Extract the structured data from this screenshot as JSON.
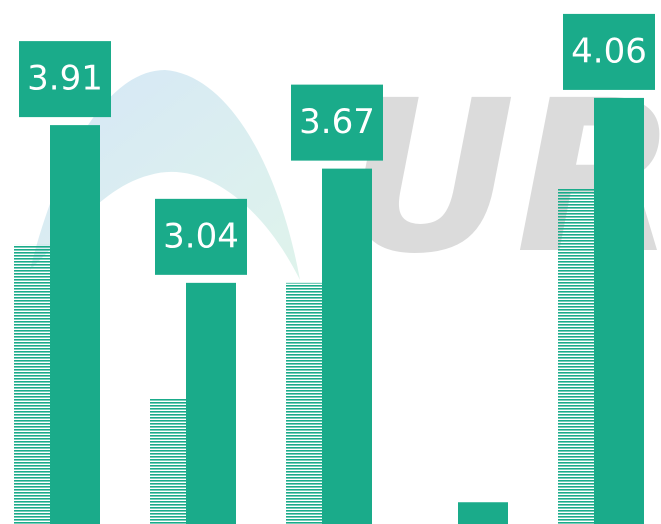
{
  "chart_data": {
    "type": "bar",
    "watermark": "URC",
    "categories": [
      null,
      null,
      null,
      null,
      null
    ],
    "series": [
      {
        "color": "#1aab8a",
        "pattern": "hatched",
        "values": [
          3.25,
          2.4,
          3.04,
          null,
          3.56
        ]
      },
      {
        "color": "#1aab8a",
        "values": [
          3.91,
          3.04,
          3.67,
          1.83,
          4.06
        ],
        "value_labels": [
          "3.91",
          "3.04",
          "3.67",
          null,
          "4.06"
        ]
      }
    ],
    "ylim": [
      1.71,
      4.6
    ]
  }
}
